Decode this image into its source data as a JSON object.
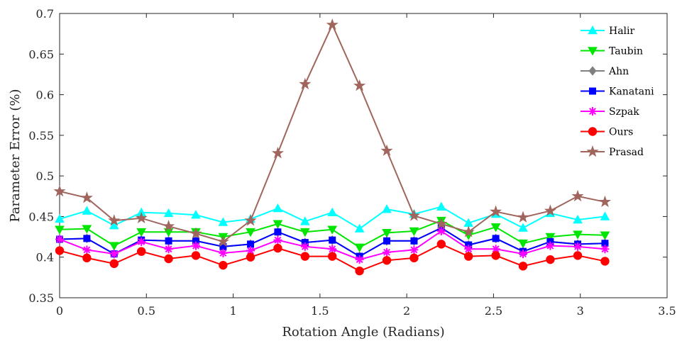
{
  "chart_data": {
    "type": "line",
    "xlabel": "Rotation Angle (Radians)",
    "ylabel": "Parameter Error (%)",
    "xlim": [
      0,
      3.5
    ],
    "ylim": [
      0.35,
      0.7
    ],
    "xticks": [
      "0",
      "0.5",
      "1",
      "1.5",
      "2",
      "2.5",
      "3",
      "3.5"
    ],
    "yticks": [
      "0.35",
      "0.4",
      "0.45",
      "0.5",
      "0.55",
      "0.6",
      "0.65",
      "0.7"
    ],
    "grid": false,
    "legend_position": "top-right",
    "x": [
      0,
      0.157,
      0.314,
      0.471,
      0.628,
      0.785,
      0.942,
      1.1,
      1.257,
      1.414,
      1.571,
      1.728,
      1.885,
      2.042,
      2.199,
      2.356,
      2.513,
      2.67,
      2.827,
      2.985,
      3.142
    ],
    "series": [
      {
        "name": "Halir",
        "color": "#00FFFF",
        "marker": "triangle-up",
        "values": [
          0.447,
          0.457,
          0.439,
          0.455,
          0.454,
          0.452,
          0.443,
          0.447,
          0.46,
          0.444,
          0.455,
          0.435,
          0.459,
          0.453,
          0.462,
          0.442,
          0.453,
          0.436,
          0.454,
          0.446,
          0.45
        ]
      },
      {
        "name": "Taubin",
        "color": "#00E600",
        "marker": "triangle-down",
        "values": [
          0.434,
          0.435,
          0.414,
          0.431,
          0.431,
          0.431,
          0.425,
          0.431,
          0.441,
          0.431,
          0.434,
          0.412,
          0.43,
          0.432,
          0.445,
          0.427,
          0.437,
          0.417,
          0.425,
          0.428,
          0.427
        ]
      },
      {
        "name": "Ahn",
        "color": "#808080",
        "marker": "diamond",
        "values": [
          0.422,
          0.423,
          0.404,
          0.421,
          0.42,
          0.42,
          0.413,
          0.416,
          0.431,
          0.418,
          0.421,
          0.401,
          0.42,
          0.42,
          0.436,
          0.415,
          0.423,
          0.407,
          0.419,
          0.416,
          0.417
        ]
      },
      {
        "name": "Kanatani",
        "color": "#0000FF",
        "marker": "square",
        "values": [
          0.422,
          0.423,
          0.404,
          0.421,
          0.42,
          0.42,
          0.413,
          0.416,
          0.431,
          0.418,
          0.421,
          0.401,
          0.42,
          0.42,
          0.436,
          0.415,
          0.423,
          0.407,
          0.419,
          0.416,
          0.417
        ]
      },
      {
        "name": "Szpak",
        "color": "#FF00FF",
        "marker": "asterisk",
        "values": [
          0.422,
          0.409,
          0.404,
          0.419,
          0.41,
          0.414,
          0.405,
          0.408,
          0.421,
          0.413,
          0.41,
          0.397,
          0.406,
          0.409,
          0.432,
          0.41,
          0.41,
          0.404,
          0.414,
          0.413,
          0.41
        ]
      },
      {
        "name": "Ours",
        "color": "#FF0000",
        "marker": "circle",
        "values": [
          0.408,
          0.399,
          0.392,
          0.407,
          0.398,
          0.402,
          0.39,
          0.4,
          0.411,
          0.401,
          0.401,
          0.383,
          0.396,
          0.399,
          0.416,
          0.401,
          0.402,
          0.389,
          0.397,
          0.402,
          0.395
        ]
      },
      {
        "name": "Prasad",
        "color": "#A0665E",
        "marker": "star",
        "values": [
          0.481,
          0.473,
          0.445,
          0.448,
          0.438,
          0.429,
          0.419,
          0.445,
          0.528,
          0.613,
          0.686,
          0.611,
          0.531,
          0.451,
          0.441,
          0.431,
          0.456,
          0.449,
          0.457,
          0.475,
          0.468
        ]
      }
    ]
  }
}
